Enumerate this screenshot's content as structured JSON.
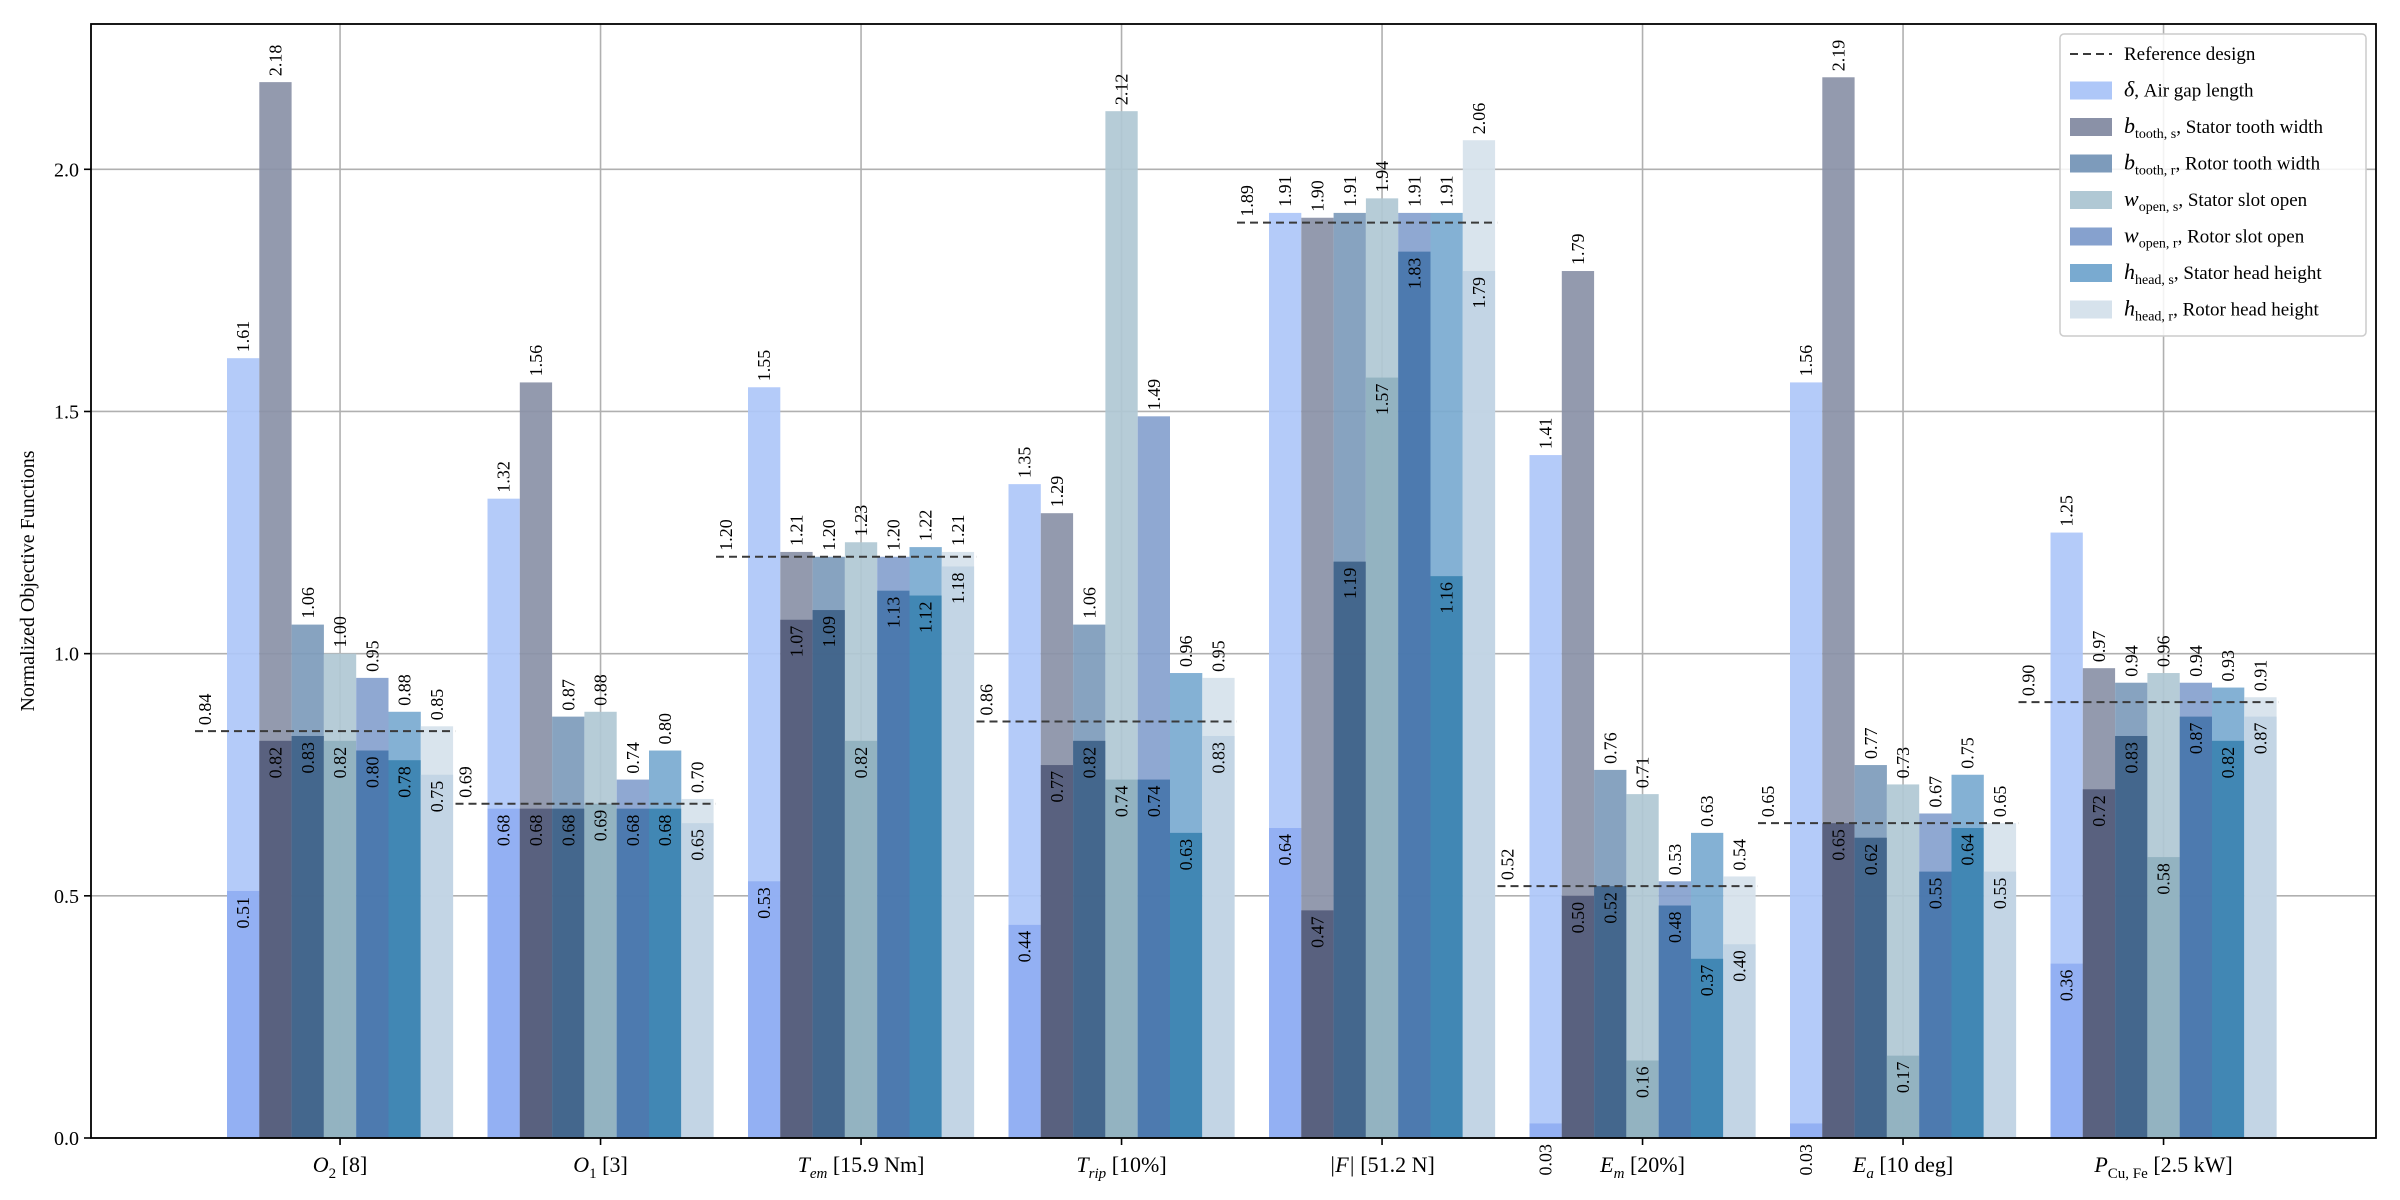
{
  "chart_data": {
    "type": "bar",
    "ylabel": "Normalized Objective Functions",
    "ylim": [
      0,
      2.3
    ],
    "yticks": [
      "0.0",
      "0.5",
      "1.0",
      "1.5",
      "2.0"
    ],
    "grid": true,
    "legend_position": "top-right",
    "categories": [
      {
        "main": "O",
        "sub": "2",
        "suffix": " [8]",
        "italic": true
      },
      {
        "main": "O",
        "sub": "1",
        "suffix": " [3]",
        "italic": true
      },
      {
        "main": "T",
        "sub": "em",
        "suffix": " [15.9 Nm]",
        "italic": true
      },
      {
        "main": "T",
        "sub": "rip",
        "suffix": " [10%]",
        "italic": true
      },
      {
        "main": "|F|",
        "sub": "",
        "suffix": " [51.2 N]",
        "italic": true
      },
      {
        "main": "E",
        "sub": "m",
        "suffix": " [20%]",
        "italic": true
      },
      {
        "main": "E",
        "sub": "a",
        "suffix": " [10 deg]",
        "italic": true
      },
      {
        "main": "P",
        "sub": "Cu, Fe",
        "suffix": " [2.5 kW]",
        "italic": true
      }
    ],
    "reference": {
      "label": "Reference design",
      "values": [
        0.84,
        0.69,
        1.2,
        0.86,
        1.89,
        0.52,
        0.65,
        0.9
      ],
      "labels": [
        "0.84",
        "0.69",
        "1.20",
        "0.86",
        "1.89",
        "0.52",
        "0.65",
        "0.90"
      ]
    },
    "series": [
      {
        "name": "Air gap length",
        "symbol": "δ",
        "sub": "",
        "color": "#aec7f8",
        "color_low": "#8fadf2",
        "high": [
          1.61,
          1.32,
          1.55,
          1.35,
          1.91,
          1.41,
          1.56,
          1.25
        ],
        "low": [
          0.51,
          0.68,
          0.53,
          0.44,
          0.64,
          0.03,
          0.03,
          0.36
        ],
        "high_labels": [
          "1.61",
          "1.32",
          "1.55",
          "1.35",
          "1.91",
          "1.41",
          "1.56",
          "1.25"
        ],
        "low_labels": [
          "0.51",
          "0.68",
          "0.53",
          "0.44",
          "0.64",
          "0.03",
          "0.03",
          "0.36"
        ]
      },
      {
        "name": "Stator tooth width",
        "symbol": "b",
        "sub": "tooth, s",
        "color": "#8a91a7",
        "color_low": "#535b7a",
        "high": [
          2.18,
          1.56,
          1.21,
          1.29,
          1.9,
          1.79,
          2.19,
          0.97
        ],
        "low": [
          0.82,
          0.68,
          1.07,
          0.77,
          0.47,
          0.5,
          0.65,
          0.72
        ],
        "high_labels": [
          "2.18",
          "1.56",
          "1.21",
          "1.29",
          "1.90",
          "1.79",
          "2.19",
          "0.97"
        ],
        "low_labels": [
          "0.82",
          "0.68",
          "1.07",
          "0.77",
          "0.47",
          "0.50",
          "0.65",
          "0.72"
        ]
      },
      {
        "name": "Rotor tooth width",
        "symbol": "b",
        "sub": "tooth, r",
        "color": "#7d9bbb",
        "color_low": "#3d6087",
        "high": [
          1.06,
          0.87,
          1.2,
          1.06,
          1.91,
          0.76,
          0.77,
          0.94
        ],
        "low": [
          0.83,
          0.68,
          1.09,
          0.82,
          1.19,
          0.52,
          0.62,
          0.83
        ],
        "high_labels": [
          "1.06",
          "0.87",
          "1.20",
          "1.06",
          "1.91",
          "0.76",
          "0.77",
          "0.94"
        ],
        "low_labels": [
          "0.83",
          "0.68",
          "1.09",
          "0.82",
          "1.19",
          "0.52",
          "0.62",
          "0.83"
        ]
      },
      {
        "name": "Stator slot open",
        "symbol": "w",
        "sub": "open, s",
        "color": "#b0c8d4",
        "color_low": "#8fb0bf",
        "high": [
          1.0,
          0.88,
          1.23,
          2.12,
          1.94,
          0.71,
          0.73,
          0.96
        ],
        "low": [
          0.82,
          0.69,
          0.82,
          0.74,
          1.57,
          0.16,
          0.17,
          0.58
        ],
        "high_labels": [
          "1.00",
          "0.88",
          "1.23",
          "2.12",
          "1.94",
          "0.71",
          "0.73",
          "0.96"
        ],
        "low_labels": [
          "0.82",
          "0.69",
          "0.82",
          "0.74",
          "1.57",
          "0.16",
          "0.17",
          "0.58"
        ]
      },
      {
        "name": "Rotor slot open",
        "symbol": "w",
        "sub": "open, r",
        "color": "#86a1ce",
        "color_low": "#4674ab",
        "high": [
          0.95,
          0.74,
          1.2,
          1.49,
          1.91,
          0.53,
          0.67,
          0.94
        ],
        "low": [
          0.8,
          0.68,
          1.13,
          0.74,
          1.83,
          0.48,
          0.55,
          0.87
        ],
        "high_labels": [
          "0.95",
          "0.74",
          "1.20",
          "1.49",
          "1.91",
          "0.53",
          "0.67",
          "0.94"
        ],
        "low_labels": [
          "0.80",
          "0.68",
          "1.13",
          "0.74",
          "1.83",
          "0.48",
          "0.55",
          "0.87"
        ]
      },
      {
        "name": "Stator head height",
        "symbol": "h",
        "sub": "head, s",
        "color": "#79aad0",
        "color_low": "#3a83b0",
        "high": [
          0.88,
          0.8,
          1.22,
          0.96,
          1.91,
          0.63,
          0.75,
          0.93
        ],
        "low": [
          0.78,
          0.68,
          1.12,
          0.63,
          1.16,
          0.37,
          0.64,
          0.82
        ],
        "high_labels": [
          "0.88",
          "0.80",
          "1.22",
          "0.96",
          "1.91",
          "0.63",
          "0.75",
          "0.93"
        ],
        "low_labels": [
          "0.78",
          "0.68",
          "1.12",
          "0.63",
          "1.16",
          "0.37",
          "0.64",
          "0.82"
        ]
      },
      {
        "name": "Rotor head height",
        "symbol": "h",
        "sub": "head, r",
        "color": "#d6e2ec",
        "color_low": "#c0d3e3",
        "high": [
          0.85,
          0.7,
          1.21,
          0.95,
          2.06,
          0.54,
          0.65,
          0.91
        ],
        "low": [
          0.75,
          0.65,
          1.18,
          0.83,
          1.79,
          0.4,
          0.55,
          0.87
        ],
        "high_labels": [
          "0.85",
          "0.70",
          "1.21",
          "0.95",
          "2.06",
          "0.54",
          "0.65",
          "0.91"
        ],
        "low_labels": [
          "0.75",
          "0.65",
          "1.18",
          "0.83",
          "1.79",
          "0.40",
          "0.55",
          "0.87"
        ]
      }
    ]
  }
}
